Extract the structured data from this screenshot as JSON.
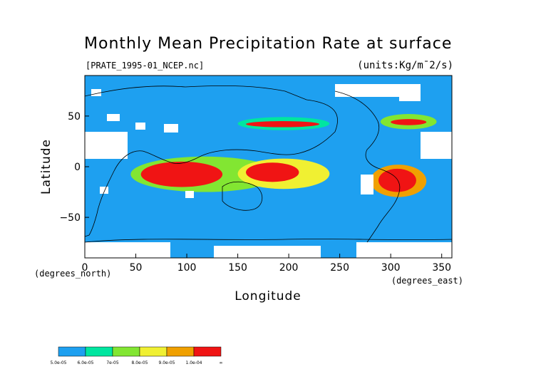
{
  "title": "Monthly Mean Precipitation Rate at surface",
  "file_label": "[PRATE_1995-01_NCEP.nc]",
  "units_label": "(units:Kg/m¯2/s)",
  "x_axis": {
    "label": "Longitude",
    "unit_label": "(degrees_east)",
    "ticks": [
      "0",
      "50",
      "100",
      "150",
      "200",
      "250",
      "300",
      "350"
    ],
    "tick_values": [
      0,
      50,
      100,
      150,
      200,
      250,
      300,
      350
    ],
    "range": [
      0,
      360
    ]
  },
  "y_axis": {
    "label": "Latitude",
    "unit_label": "(degrees_north)",
    "ticks": [
      "50",
      "0",
      "−50"
    ],
    "tick_values": [
      50,
      0,
      -50
    ],
    "range": [
      -90,
      90
    ]
  },
  "legend": {
    "labels": [
      "5.0e-05",
      "6.0e-05",
      "7e-05",
      "8.0e-05",
      "9.0e-05",
      "1.0e-04",
      "∞"
    ],
    "bins": [
      {
        "from": 5e-05,
        "to": 6e-05,
        "color": "#1ea0f0"
      },
      {
        "from": 6e-05,
        "to": 7e-05,
        "color": "#00e6a0"
      },
      {
        "from": 7e-05,
        "to": 8e-05,
        "color": "#82e632"
      },
      {
        "from": 8e-05,
        "to": 9e-05,
        "color": "#f0f032"
      },
      {
        "from": 9e-05,
        "to": 0.0001,
        "color": "#f0a000"
      },
      {
        "from": 0.0001,
        "to": "inf",
        "color": "#f01414"
      }
    ]
  },
  "chart_data": {
    "type": "heatmap",
    "title": "Monthly Mean Precipitation Rate at surface",
    "xlabel": "Longitude",
    "ylabel": "Latitude",
    "xlim": [
      0,
      360
    ],
    "ylim": [
      -90,
      90
    ],
    "units": "Kg/m¯2/s",
    "background_color": "#1ea0f0",
    "regions": [
      {
        "name": "",
        "level": 4,
        "lon": [
          150,
          240
        ],
        "lat": [
          36,
          49
        ],
        "color": "#00e6a0"
      },
      {
        "name": "",
        "level": 6,
        "lon": [
          158,
          230
        ],
        "lat": [
          39,
          45
        ],
        "color": "#f01414"
      },
      {
        "name": "",
        "level": 4,
        "lon": [
          290,
          345
        ],
        "lat": [
          37,
          52
        ],
        "color": "#82e632"
      },
      {
        "name": "",
        "level": 6,
        "lon": [
          300,
          335
        ],
        "lat": [
          41,
          47
        ],
        "color": "#f01414"
      },
      {
        "name": "",
        "level": 4,
        "lon": [
          45,
          190
        ],
        "lat": [
          -25,
          10
        ],
        "color": "#82e632"
      },
      {
        "name": "",
        "level": 6,
        "lon": [
          55,
          135
        ],
        "lat": [
          -20,
          5
        ],
        "color": "#f01414"
      },
      {
        "name": "",
        "level": 4,
        "lon": [
          150,
          240
        ],
        "lat": [
          -22,
          8
        ],
        "color": "#f0f032"
      },
      {
        "name": "",
        "level": 6,
        "lon": [
          158,
          210
        ],
        "lat": [
          -15,
          4
        ],
        "color": "#f01414"
      },
      {
        "name": "",
        "level": 4,
        "lon": [
          280,
          335
        ],
        "lat": [
          -30,
          2
        ],
        "color": "#f0a000"
      },
      {
        "name": "",
        "level": 6,
        "lon": [
          288,
          325
        ],
        "lat": [
          -25,
          -2
        ],
        "color": "#f01414"
      }
    ]
  }
}
